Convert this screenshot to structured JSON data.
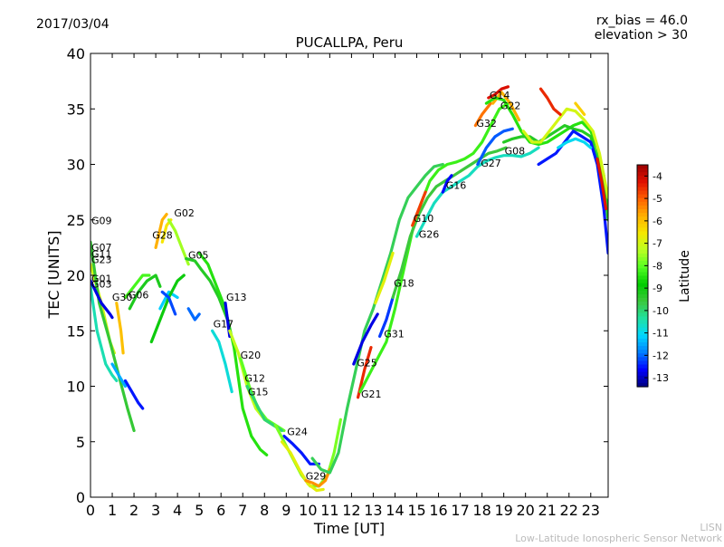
{
  "header": {
    "date": "2017/03/04",
    "rx_bias": "rx_bias = 46.0",
    "elevation": "elevation > 30"
  },
  "footer": {
    "line1": "LISN",
    "line2": "Low-Latitude Ionospheric Sensor Network"
  },
  "chart_data": {
    "type": "scatter",
    "title": "PUCALLPA, Peru",
    "xlabel": "Time [UT]",
    "ylabel": "TEC [UNITS]",
    "xlim": [
      0,
      23.8
    ],
    "ylim": [
      0,
      40
    ],
    "x_ticks": [
      "0",
      "1",
      "2",
      "3",
      "4",
      "5",
      "6",
      "7",
      "8",
      "9",
      "10",
      "11",
      "12",
      "13",
      "14",
      "15",
      "16",
      "17",
      "18",
      "19",
      "20",
      "21",
      "22",
      "23"
    ],
    "y_ticks": [
      "0",
      "5",
      "10",
      "15",
      "20",
      "25",
      "30",
      "35",
      "40"
    ],
    "grid": false,
    "colorbar": {
      "label": "Latitude",
      "min": -13.4,
      "max": -3.5,
      "ticks": [
        "-4",
        "-5",
        "-6",
        "-7",
        "-8",
        "-9",
        "-10",
        "-11",
        "-12",
        "-13"
      ],
      "tick_values": [
        -4,
        -5,
        -6,
        -7,
        -8,
        -9,
        -10,
        -11,
        -12,
        -13
      ],
      "colormap": [
        "#00007f",
        "#0000ff",
        "#007fff",
        "#00d8ff",
        "#21e0a0",
        "#3cc83c",
        "#00cc00",
        "#55ff22",
        "#bbff22",
        "#f5e800",
        "#ffb000",
        "#ff6000",
        "#e01000",
        "#9a0000"
      ]
    },
    "labels": [
      {
        "text": "G09",
        "x": 0.0,
        "y": 24.6
      },
      {
        "text": "G07",
        "x": 0.0,
        "y": 22.2
      },
      {
        "text": "G11",
        "x": 0.0,
        "y": 21.6
      },
      {
        "text": "G23",
        "x": 0.0,
        "y": 21.1
      },
      {
        "text": "G01",
        "x": 0.0,
        "y": 19.4
      },
      {
        "text": "G03",
        "x": 0.0,
        "y": 18.9
      },
      {
        "text": "G30",
        "x": 0.95,
        "y": 17.7
      },
      {
        "text": "G06",
        "x": 1.7,
        "y": 17.9
      },
      {
        "text": "G28",
        "x": 2.8,
        "y": 23.3
      },
      {
        "text": "G02",
        "x": 3.8,
        "y": 25.3
      },
      {
        "text": "G05",
        "x": 4.45,
        "y": 21.5
      },
      {
        "text": "G13",
        "x": 6.2,
        "y": 17.7
      },
      {
        "text": "G17",
        "x": 5.6,
        "y": 15.3
      },
      {
        "text": "G20",
        "x": 6.85,
        "y": 12.5
      },
      {
        "text": "G12",
        "x": 7.05,
        "y": 10.4
      },
      {
        "text": "G15",
        "x": 7.2,
        "y": 9.2
      },
      {
        "text": "G24",
        "x": 9.0,
        "y": 5.6
      },
      {
        "text": "G29",
        "x": 9.85,
        "y": 1.6
      },
      {
        "text": "G25",
        "x": 12.2,
        "y": 11.8
      },
      {
        "text": "G21",
        "x": 12.4,
        "y": 9.0
      },
      {
        "text": "G31",
        "x": 13.45,
        "y": 14.4
      },
      {
        "text": "G18",
        "x": 13.9,
        "y": 19.0
      },
      {
        "text": "G10",
        "x": 14.8,
        "y": 24.8
      },
      {
        "text": "G26",
        "x": 15.05,
        "y": 23.4
      },
      {
        "text": "G16",
        "x": 16.3,
        "y": 27.8
      },
      {
        "text": "G27",
        "x": 17.9,
        "y": 29.8
      },
      {
        "text": "G08",
        "x": 19.0,
        "y": 30.9
      },
      {
        "text": "G32",
        "x": 17.7,
        "y": 33.4
      },
      {
        "text": "G14",
        "x": 18.3,
        "y": 35.9
      },
      {
        "text": "G22",
        "x": 18.8,
        "y": 35.0
      }
    ],
    "series": [
      {
        "latitude": -7.0,
        "x": [
          0.0,
          0.5,
          0.9,
          1.1
        ],
        "y": [
          21.0,
          17.5,
          14.0,
          13.0
        ]
      },
      {
        "latitude": -9.5,
        "x": [
          0.0,
          0.4,
          0.9,
          1.3,
          1.7,
          2.0
        ],
        "y": [
          23.0,
          17.5,
          14.0,
          11.0,
          8.0,
          6.0
        ]
      },
      {
        "latitude": -10.5,
        "x": [
          0.0,
          0.3,
          0.7,
          1.0,
          1.2
        ],
        "y": [
          19.0,
          15.0,
          12.0,
          11.0,
          10.5
        ]
      },
      {
        "latitude": -12.8,
        "x": [
          0.0,
          0.5,
          0.9,
          1.0
        ],
        "y": [
          19.5,
          17.5,
          16.5,
          16.2
        ]
      },
      {
        "latitude": -11.5,
        "x": [
          1.0,
          1.3,
          1.6
        ],
        "y": [
          12.0,
          11.0,
          10.0
        ]
      },
      {
        "latitude": -12.5,
        "x": [
          1.6,
          1.9,
          2.2,
          2.4
        ],
        "y": [
          10.5,
          9.5,
          8.5,
          8.0
        ]
      },
      {
        "latitude": -6.0,
        "x": [
          1.2,
          1.4,
          1.5
        ],
        "y": [
          17.5,
          15.0,
          13.0
        ]
      },
      {
        "latitude": -8.2,
        "x": [
          1.6,
          2.0,
          2.4,
          2.7
        ],
        "y": [
          18.0,
          19.0,
          20.0,
          20.0
        ]
      },
      {
        "latitude": -9.2,
        "x": [
          1.8,
          2.2,
          2.6,
          3.0,
          3.2
        ],
        "y": [
          17.0,
          18.5,
          19.5,
          20.0,
          19.0
        ]
      },
      {
        "latitude": -5.8,
        "x": [
          3.0,
          3.3,
          3.5
        ],
        "y": [
          22.5,
          25.0,
          25.5
        ]
      },
      {
        "latitude": -6.5,
        "x": [
          3.3,
          3.5,
          3.7
        ],
        "y": [
          23.0,
          24.5,
          25.0
        ]
      },
      {
        "latitude": -7.5,
        "x": [
          3.6,
          3.9,
          4.2,
          4.5
        ],
        "y": [
          25.0,
          24.0,
          22.5,
          21.0
        ]
      },
      {
        "latitude": -11.2,
        "x": [
          3.2,
          3.6,
          4.0
        ],
        "y": [
          17.0,
          18.5,
          18.0
        ]
      },
      {
        "latitude": -9.0,
        "x": [
          2.8,
          3.2,
          3.6,
          4.0,
          4.3
        ],
        "y": [
          14.0,
          16.0,
          18.0,
          19.5,
          20.0
        ]
      },
      {
        "latitude": -12.2,
        "x": [
          3.3,
          3.6,
          3.9
        ],
        "y": [
          18.5,
          18.0,
          16.5
        ]
      },
      {
        "latitude": -9.3,
        "x": [
          4.4,
          4.8,
          5.1,
          5.5,
          5.9,
          6.3
        ],
        "y": [
          21.5,
          21.3,
          20.5,
          19.5,
          18.0,
          16.0
        ]
      },
      {
        "latitude": -8.5,
        "x": [
          5.0,
          5.4,
          5.8,
          6.2,
          6.6,
          7.0,
          7.4,
          7.8,
          8.1
        ],
        "y": [
          22.0,
          21.0,
          19.0,
          17.0,
          13.5,
          8.0,
          5.5,
          4.3,
          3.8
        ]
      },
      {
        "latitude": -12.0,
        "x": [
          4.5,
          4.8,
          5.0
        ],
        "y": [
          17.0,
          16.0,
          16.5
        ]
      },
      {
        "latitude": -12.8,
        "x": [
          6.2,
          6.3,
          6.4
        ],
        "y": [
          17.5,
          16.0,
          14.5
        ]
      },
      {
        "latitude": -10.8,
        "x": [
          5.6,
          5.9,
          6.2,
          6.5
        ],
        "y": [
          15.0,
          14.0,
          12.0,
          9.5
        ]
      },
      {
        "latitude": -7.2,
        "x": [
          6.4,
          6.8,
          7.2,
          7.6,
          8.0,
          8.4
        ],
        "y": [
          15.0,
          13.0,
          10.0,
          8.0,
          7.0,
          6.5
        ]
      },
      {
        "latitude": -8.0,
        "x": [
          6.9,
          7.3,
          7.7,
          8.1,
          8.5,
          8.9
        ],
        "y": [
          12.5,
          10.0,
          8.0,
          7.0,
          6.5,
          6.0
        ]
      },
      {
        "latitude": -10.0,
        "x": [
          7.2,
          7.6,
          8.0,
          8.4,
          8.8
        ],
        "y": [
          10.0,
          8.5,
          7.0,
          6.5,
          6.0
        ]
      },
      {
        "latitude": -12.5,
        "x": [
          8.9,
          9.3,
          9.7,
          10.1,
          10.5
        ],
        "y": [
          5.5,
          4.8,
          4.0,
          3.0,
          3.0
        ]
      },
      {
        "latitude": -7.8,
        "x": [
          8.5,
          8.9,
          9.3,
          9.7,
          10.1,
          10.5,
          10.9,
          11.2,
          11.5
        ],
        "y": [
          6.5,
          5.0,
          3.5,
          2.0,
          1.0,
          1.0,
          2.0,
          4.0,
          7.0
        ]
      },
      {
        "latitude": -6.8,
        "x": [
          8.8,
          9.2,
          9.6,
          10.0,
          10.4,
          10.7
        ],
        "y": [
          5.0,
          4.0,
          2.5,
          1.2,
          0.6,
          0.7
        ]
      },
      {
        "latitude": -5.5,
        "x": [
          9.9,
          10.2,
          10.5,
          10.8,
          11.0
        ],
        "y": [
          1.5,
          1.3,
          1.0,
          1.5,
          2.5
        ]
      },
      {
        "latitude": -9.8,
        "x": [
          10.2,
          10.6,
          11.0,
          11.4,
          11.8,
          12.2,
          12.6,
          13.0,
          13.4,
          13.8,
          14.2,
          14.6,
          15.0,
          15.4,
          15.8,
          16.2
        ],
        "y": [
          3.5,
          2.5,
          2.2,
          4.0,
          8.0,
          11.5,
          15.0,
          17.0,
          19.5,
          22.0,
          25.0,
          27.0,
          28.0,
          29.0,
          29.8,
          30.0
        ]
      },
      {
        "latitude": -12.8,
        "x": [
          12.1,
          12.5,
          12.9,
          13.2
        ],
        "y": [
          12.0,
          14.0,
          15.5,
          16.5
        ]
      },
      {
        "latitude": -4.5,
        "x": [
          12.3,
          12.6,
          12.9
        ],
        "y": [
          9.0,
          11.5,
          13.5
        ]
      },
      {
        "latitude": -8.3,
        "x": [
          12.4,
          12.8,
          13.2,
          13.6,
          14.0,
          14.4,
          14.8,
          15.2,
          15.6,
          16.0,
          16.4,
          16.8,
          17.2,
          17.6,
          18.0,
          18.4,
          18.8,
          19.2
        ],
        "y": [
          9.5,
          11.0,
          12.5,
          14.0,
          17.0,
          20.5,
          24.0,
          26.5,
          28.5,
          29.5,
          30.0,
          30.2,
          30.5,
          31.0,
          32.0,
          33.5,
          35.0,
          35.5
        ]
      },
      {
        "latitude": -12.3,
        "x": [
          13.3,
          13.6,
          13.9
        ],
        "y": [
          14.5,
          16.0,
          18.0
        ]
      },
      {
        "latitude": -9.6,
        "x": [
          13.9,
          14.3,
          14.7,
          15.1,
          15.5,
          15.9,
          16.3,
          16.7,
          17.1,
          17.5,
          17.9,
          18.3,
          18.7,
          19.1
        ],
        "y": [
          18.0,
          20.5,
          23.5,
          25.5,
          27.0,
          28.0,
          28.5,
          29.0,
          29.5,
          30.0,
          30.5,
          31.0,
          31.2,
          31.5
        ]
      },
      {
        "latitude": -6.8,
        "x": [
          13.1,
          13.5,
          13.9
        ],
        "y": [
          17.5,
          19.5,
          22.0
        ]
      },
      {
        "latitude": -4.7,
        "x": [
          14.8,
          15.1,
          15.4
        ],
        "y": [
          24.5,
          26.0,
          27.5
        ]
      },
      {
        "latitude": -10.6,
        "x": [
          15.0,
          15.4,
          15.8,
          16.2,
          16.6,
          17.0,
          17.4,
          17.8,
          18.2,
          18.6,
          19.0,
          19.4,
          19.8,
          20.2,
          20.6
        ],
        "y": [
          23.5,
          25.0,
          26.5,
          27.5,
          28.0,
          28.5,
          29.0,
          29.8,
          30.3,
          30.6,
          30.8,
          30.8,
          30.7,
          31.0,
          31.5
        ]
      },
      {
        "latitude": -12.6,
        "x": [
          16.2,
          16.4,
          16.6
        ],
        "y": [
          27.5,
          28.5,
          29.0
        ]
      },
      {
        "latitude": -12.1,
        "x": [
          17.8,
          18.2,
          18.6,
          19.0,
          19.4
        ],
        "y": [
          30.0,
          31.5,
          32.5,
          33.0,
          33.2
        ]
      },
      {
        "latitude": -5.2,
        "x": [
          17.7,
          18.0,
          18.4
        ],
        "y": [
          33.5,
          34.5,
          35.5
        ]
      },
      {
        "latitude": -4.2,
        "x": [
          18.3,
          18.6,
          18.9,
          19.2
        ],
        "y": [
          36.0,
          36.3,
          36.8,
          37.0
        ]
      },
      {
        "latitude": -5.8,
        "x": [
          18.5,
          18.9,
          19.3,
          19.7
        ],
        "y": [
          35.5,
          36.5,
          35.5,
          34.0
        ]
      },
      {
        "latitude": -8.5,
        "x": [
          18.2,
          18.6,
          19.0,
          19.4,
          19.8,
          20.2,
          20.6,
          21.0,
          21.4,
          21.8,
          22.2,
          22.6,
          23.0,
          23.3,
          23.6,
          23.8
        ],
        "y": [
          35.5,
          36.0,
          35.8,
          34.5,
          33.0,
          32.0,
          31.8,
          32.0,
          32.5,
          33.0,
          33.5,
          33.8,
          33.0,
          31.5,
          29.0,
          26.0
        ]
      },
      {
        "latitude": -9.3,
        "x": [
          19.0,
          19.4,
          19.8,
          20.2,
          20.6,
          21.0,
          21.4,
          21.8,
          22.2,
          22.6,
          23.0,
          23.3,
          23.6,
          23.8
        ],
        "y": [
          32.0,
          32.3,
          32.5,
          32.5,
          32.0,
          32.5,
          33.0,
          33.5,
          33.2,
          33.0,
          32.5,
          30.5,
          28.0,
          25.0
        ]
      },
      {
        "latitude": -7.0,
        "x": [
          19.9,
          20.3,
          20.7,
          21.1,
          21.5,
          21.9,
          22.3,
          22.7,
          23.1,
          23.4,
          23.8
        ],
        "y": [
          33.0,
          32.0,
          32.0,
          33.0,
          34.0,
          35.0,
          34.8,
          34.0,
          33.0,
          31.0,
          27.0
        ]
      },
      {
        "latitude": -4.5,
        "x": [
          20.7,
          21.0,
          21.3,
          21.6
        ],
        "y": [
          36.8,
          36.0,
          35.0,
          34.5
        ]
      },
      {
        "latitude": -6.2,
        "x": [
          22.3,
          22.5,
          22.7
        ],
        "y": [
          35.5,
          35.0,
          34.5
        ]
      },
      {
        "latitude": -12.5,
        "x": [
          20.6,
          21.0,
          21.4,
          21.8,
          22.2,
          22.6,
          23.0,
          23.3,
          23.6,
          23.8
        ],
        "y": [
          30.0,
          30.5,
          31.0,
          32.0,
          33.0,
          32.5,
          32.0,
          30.0,
          26.0,
          22.0
        ]
      },
      {
        "latitude": -11.0,
        "x": [
          21.5,
          21.9,
          22.3,
          22.7,
          23.0
        ],
        "y": [
          31.5,
          32.0,
          32.3,
          32.0,
          31.5
        ]
      },
      {
        "latitude": -4.3,
        "x": [
          23.3,
          23.5,
          23.7
        ],
        "y": [
          30.5,
          28.5,
          26.0
        ]
      }
    ]
  }
}
